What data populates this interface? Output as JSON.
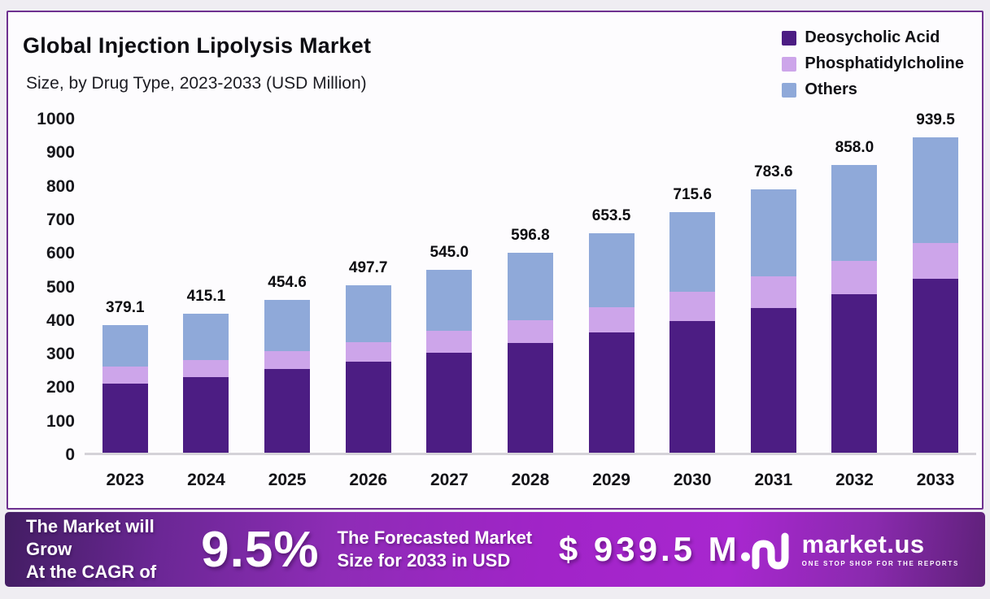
{
  "header": {
    "title": "Global Injection Lipolysis Market",
    "subtitle": "Size, by Drug Type, 2023-2033 (USD Million)"
  },
  "chart_data": {
    "type": "bar",
    "stacked": true,
    "title": "Global Injection Lipolysis Market Size, by Drug Type, 2023-2033 (USD Million)",
    "categories": [
      "2023",
      "2024",
      "2025",
      "2026",
      "2027",
      "2028",
      "2029",
      "2030",
      "2031",
      "2032",
      "2033"
    ],
    "series": [
      {
        "name": "Deosycholic Acid",
        "color": "#4c1d83",
        "values": [
          205.0,
          225.0,
          250.0,
          272.0,
          299.0,
          328.0,
          359.0,
          393.0,
          432.0,
          472.0,
          519.0
        ]
      },
      {
        "name": "Phosphatidylcholine",
        "color": "#cda5ea",
        "values": [
          52.0,
          52.0,
          53.0,
          58.0,
          64.0,
          67.0,
          74.0,
          86.0,
          93.0,
          99.0,
          105.0
        ]
      },
      {
        "name": "Others",
        "color": "#8fa9d9",
        "values": [
          122.1,
          138.1,
          151.6,
          167.7,
          182.0,
          201.8,
          220.5,
          236.6,
          258.6,
          287.0,
          315.5
        ]
      }
    ],
    "totals": [
      379.1,
      415.1,
      454.6,
      497.7,
      545.0,
      596.8,
      653.5,
      715.6,
      783.6,
      858.0,
      939.5
    ],
    "total_labels": [
      "379.1",
      "415.1",
      "454.6",
      "497.7",
      "545.0",
      "596.8",
      "653.5",
      "715.6",
      "783.6",
      "858.0",
      "939.5"
    ],
    "ylim": [
      0,
      1000
    ],
    "yticks": [
      0,
      100,
      200,
      300,
      400,
      500,
      600,
      700,
      800,
      900,
      1000
    ],
    "grid": false,
    "legend_position": "top-right"
  },
  "banner": {
    "grow_line1": "The Market will Grow",
    "grow_line2": "At the CAGR of",
    "cagr": "9.5%",
    "forecast_line1": "The Forecasted Market",
    "forecast_line2": "Size for 2033 in USD",
    "amount": "$ 939.5 M",
    "brand": {
      "name": "market.us",
      "tagline": "ONE STOP SHOP FOR THE REPORTS"
    }
  }
}
